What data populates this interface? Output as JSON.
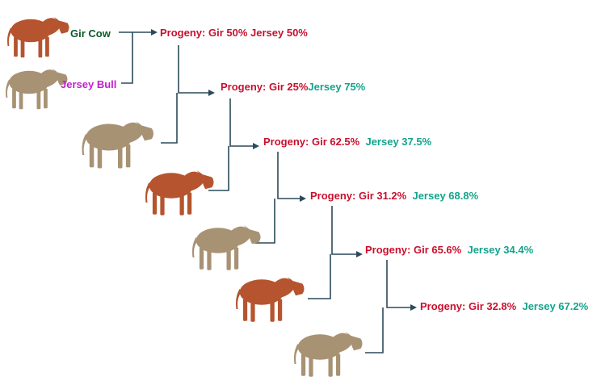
{
  "parents": {
    "cow_label": "Gir Cow",
    "bull_label": "Jersey Bull"
  },
  "generations": [
    {
      "prefix": "Progeny:",
      "gir": "Gir 50%",
      "jersey": "Jersey 50%",
      "sire_breed": "jersey"
    },
    {
      "prefix": "Progeny:",
      "gir": "Gir 25%",
      "jersey": "Jersey 75%",
      "sire_breed": "jersey"
    },
    {
      "prefix": "Progeny:",
      "gir": "Gir 62.5%",
      "jersey": "Jersey 37.5%",
      "sire_breed": "gir"
    },
    {
      "prefix": "Progeny:",
      "gir": "Gir 31.2%",
      "jersey": "Jersey 68.8%",
      "sire_breed": "jersey"
    },
    {
      "prefix": "Progeny:",
      "gir": "Gir 65.6%",
      "jersey": "Jersey 34.4%",
      "sire_breed": "gir"
    },
    {
      "prefix": "Progeny:",
      "gir": "Gir 32.8%",
      "jersey": "Jersey 67.2%",
      "sire_breed": "jersey"
    }
  ],
  "colors": {
    "progeny_red": "#c8102e",
    "jersey_teal": "#13a38c",
    "gir_cow_green": "#0b5a2a",
    "jersey_bull_purple": "#c21fd0",
    "connector": "#2c4a5a",
    "gir_coat": "#b5542e",
    "jersey_coat": "#a89274"
  },
  "icons": {
    "gir_cattle": "gir-cattle-icon",
    "jersey_cattle": "jersey-cattle-icon"
  }
}
